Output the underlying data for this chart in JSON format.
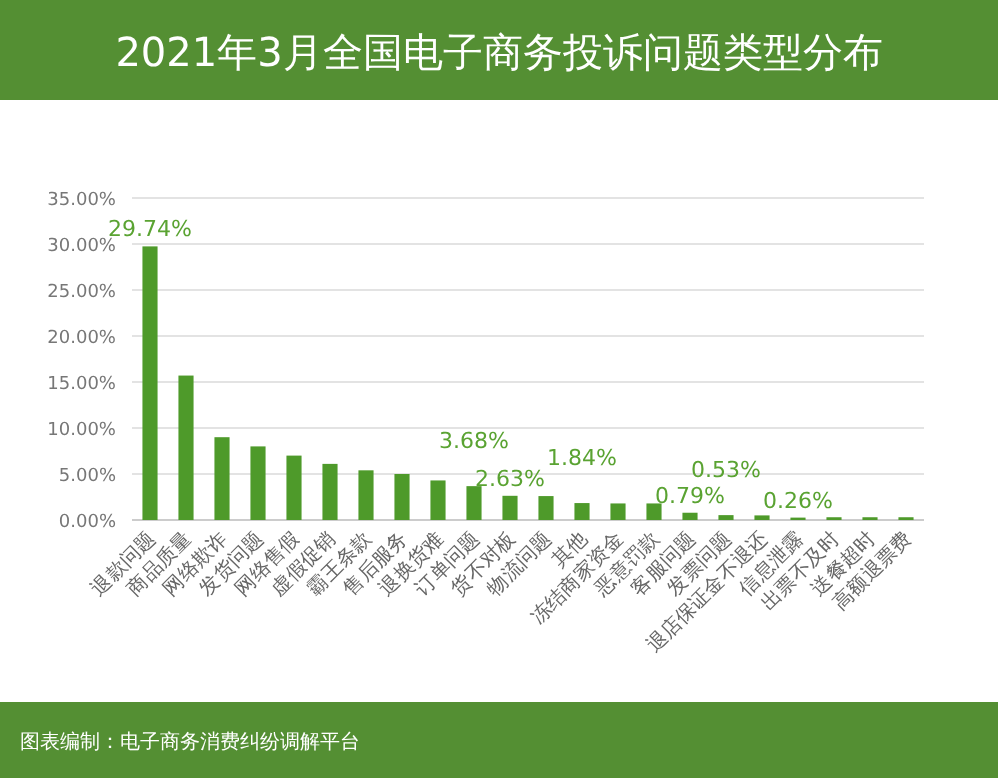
{
  "chart_data": {
    "type": "bar",
    "title": "2021年3月全国电子商务投诉问题类型分布",
    "categories": [
      "退款问题",
      "商品质量",
      "网络欺诈",
      "发货问题",
      "网络售假",
      "虚假促销",
      "霸王条款",
      "售后服务",
      "退换货难",
      "订单问题",
      "货不对板",
      "物流问题",
      "其他",
      "冻结商家资金",
      "恶意罚款",
      "客服问题",
      "发票问题",
      "退店保证金不退还",
      "信息泄露",
      "出票不及时",
      "送餐超时",
      "高额退票费"
    ],
    "values": [
      29.74,
      15.7,
      9.0,
      8.0,
      7.0,
      6.1,
      5.4,
      5.0,
      4.3,
      3.68,
      2.63,
      2.6,
      1.84,
      1.8,
      1.8,
      0.79,
      0.53,
      0.5,
      0.26,
      0.3,
      0.3,
      0.3
    ],
    "value_labels": [
      "29.74%",
      null,
      null,
      null,
      null,
      null,
      null,
      null,
      null,
      "3.68%",
      "2.63%",
      null,
      "1.84%",
      null,
      null,
      "0.79%",
      "0.53%",
      null,
      "0.26%",
      null,
      null,
      null
    ],
    "color": "#4e9a2a",
    "ylim": [
      0,
      35
    ],
    "yticks": [
      {
        "value": 0,
        "label": "0.00%"
      },
      {
        "value": 5,
        "label": "5.00%"
      },
      {
        "value": 10,
        "label": "10.00%"
      },
      {
        "value": 15,
        "label": "15.00%"
      },
      {
        "value": 20,
        "label": "20.00%"
      },
      {
        "value": 25,
        "label": "25.00%"
      },
      {
        "value": 30,
        "label": "30.00%"
      },
      {
        "value": 35,
        "label": "35.00%"
      }
    ],
    "grid": "y",
    "annotations": [
      "图表编制：电子商务消费纠纷调解平台"
    ]
  }
}
